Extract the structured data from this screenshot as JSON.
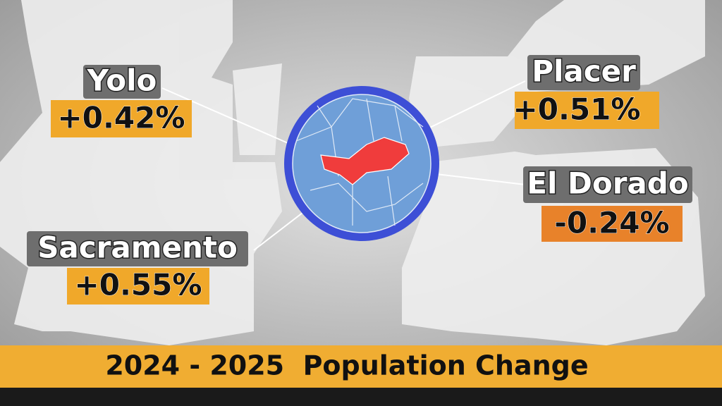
{
  "title": "2024 - 2025  Population Change",
  "regions": [
    {
      "name": "Yolo",
      "change": "+0.42%"
    },
    {
      "name": "Placer",
      "change": "+0.51%"
    },
    {
      "name": "El Dorado",
      "change": "-0.24%"
    },
    {
      "name": "Sacramento",
      "change": "+0.55%"
    }
  ]
}
